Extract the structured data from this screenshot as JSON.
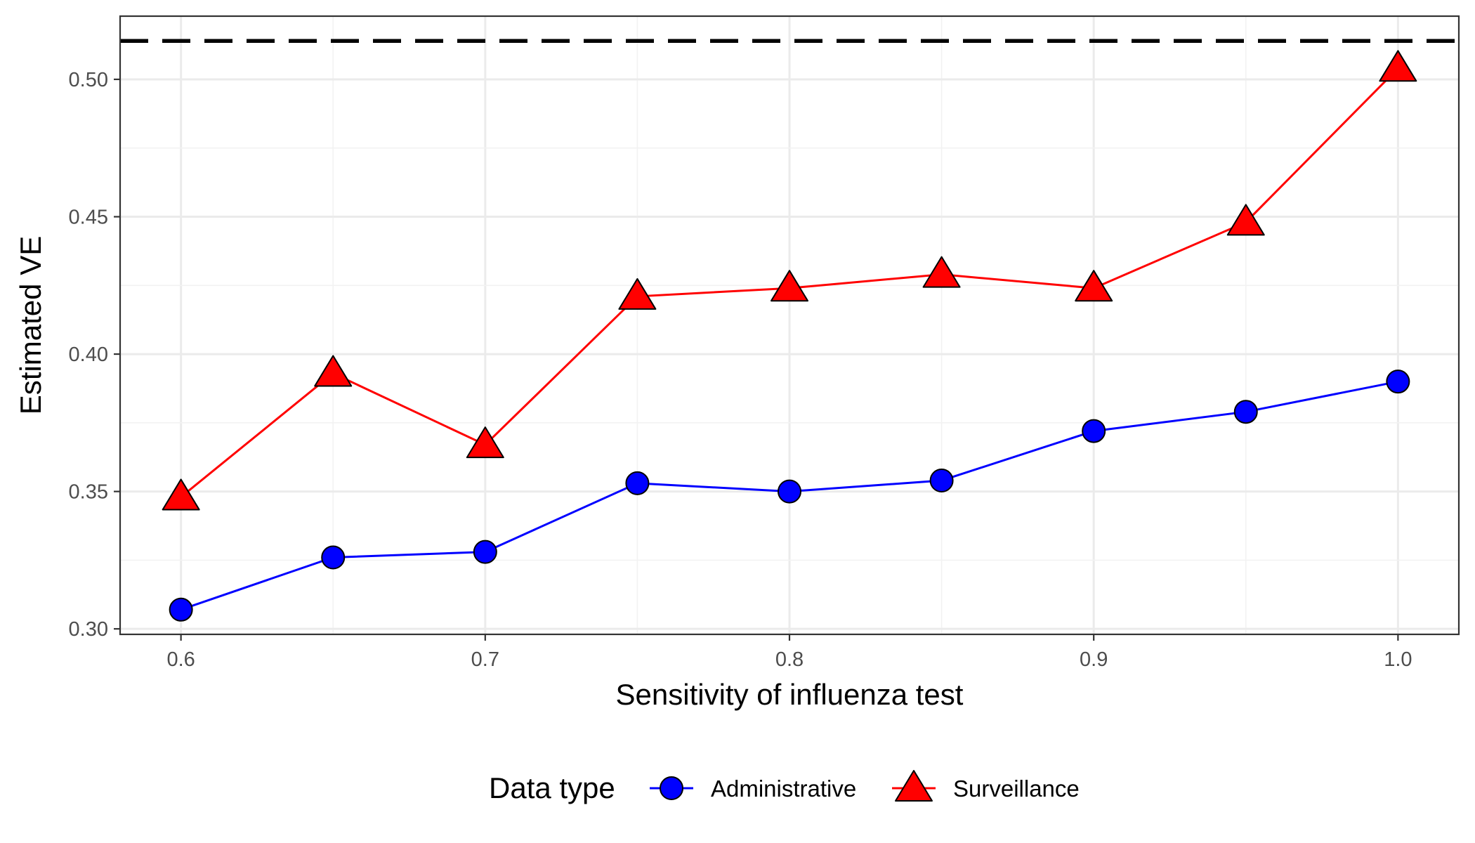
{
  "chart_data": {
    "type": "line",
    "title": "",
    "xlabel": "Sensitivity of influenza test",
    "ylabel": "Estimated VE",
    "xlim": [
      0.58,
      1.02
    ],
    "ylim": [
      0.298,
      0.523
    ],
    "x_ticks": [
      0.6,
      0.7,
      0.8,
      0.9,
      1.0
    ],
    "x_tick_labels": [
      "0.6",
      "0.7",
      "0.8",
      "0.9",
      "1.0"
    ],
    "y_ticks": [
      0.3,
      0.35,
      0.4,
      0.45,
      0.5
    ],
    "y_tick_labels": [
      "0.30",
      "0.35",
      "0.40",
      "0.45",
      "0.50"
    ],
    "x": [
      0.6,
      0.65,
      0.7,
      0.75,
      0.8,
      0.85,
      0.9,
      0.95,
      1.0
    ],
    "series": [
      {
        "name": "Administrative",
        "color": "#0000ff",
        "marker": "circle",
        "values": [
          0.307,
          0.326,
          0.328,
          0.353,
          0.35,
          0.354,
          0.372,
          0.379,
          0.39
        ]
      },
      {
        "name": "Surveillance",
        "color": "#ff0000",
        "marker": "triangle",
        "values": [
          0.348,
          0.393,
          0.367,
          0.421,
          0.424,
          0.429,
          0.424,
          0.448,
          0.504
        ]
      }
    ],
    "reference_line": {
      "y": 0.514,
      "style": "dashed",
      "color": "#000000"
    },
    "grid": true,
    "legend": {
      "title": "Data type",
      "position": "bottom"
    }
  }
}
